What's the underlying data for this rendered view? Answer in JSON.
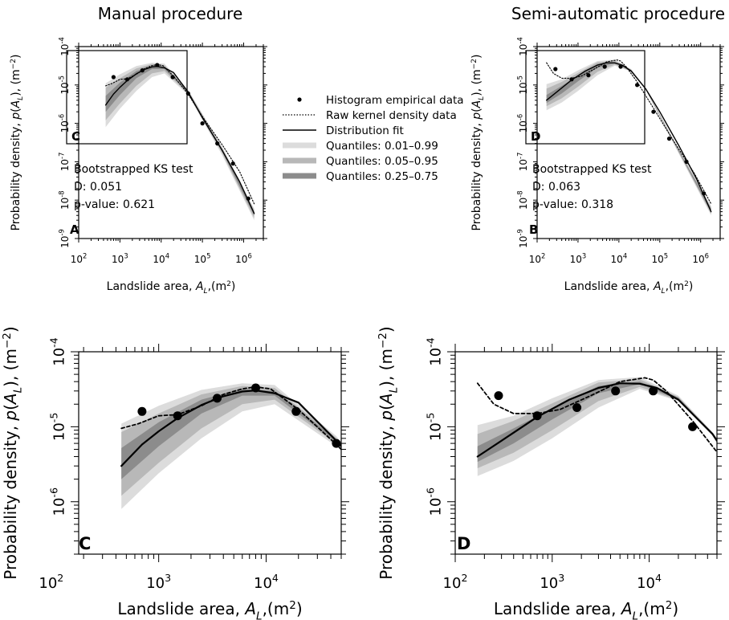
{
  "titles": {
    "left": "Manual procedure",
    "right": "Semi-automatic procedure"
  },
  "axis_text": {
    "ylabel_prefix": "Probability density, ",
    "ylabel_p": "p",
    "ylabel_A": "A",
    "ylabel_L": "L",
    "ylabel_suffix": "), (m",
    "xlabel_prefix": "Landslide area, ",
    "xlabel_A": "A",
    "xlabel_L": "L",
    "xlabel_suffix": ",(m",
    "unit_exp": "2",
    "unit_exp_neg": "−2",
    "close": ")",
    "tick_base": "10"
  },
  "legend": {
    "items": [
      {
        "label": "Histogram empirical data",
        "kind": "point"
      },
      {
        "label": "Raw kernel density data",
        "kind": "dotted"
      },
      {
        "label": "Distribution fit",
        "kind": "line"
      },
      {
        "label": "Quantiles: 0.01–0.99",
        "kind": "band",
        "color": "#dcdcdc"
      },
      {
        "label": "Quantiles: 0.05–0.95",
        "kind": "band",
        "color": "#b8b8b8"
      },
      {
        "label": "Quantiles: 0.25–0.75",
        "kind": "band",
        "color": "#8c8c8c"
      }
    ]
  },
  "ks_tests": {
    "A": {
      "title": "Bootstrapped KS test",
      "D": "D: 0.051",
      "p": "p-value: 0.621"
    },
    "B": {
      "title": "Bootstrapped KS test",
      "D": "D: 0.063",
      "p": "p-value: 0.318"
    }
  },
  "colors": {
    "q01": "#dcdcdc",
    "q05": "#b8b8b8",
    "q25": "#8c8c8c",
    "line": "#000000"
  },
  "chart_data": [
    {
      "id": "A",
      "type": "line",
      "panel_label": "A",
      "zoom_box_label": "C",
      "xscale": "log",
      "yscale": "log",
      "xlim": [
        100,
        3000000
      ],
      "ylim": [
        1e-09,
        0.0001
      ],
      "x_ticks": [
        2,
        3,
        4,
        5,
        6
      ],
      "y_ticks": [
        -9,
        -8,
        -7,
        -6,
        -5,
        -4
      ],
      "series": [
        {
          "kind": "points",
          "x": [
            700,
            1500,
            3500,
            8000,
            19000,
            45000,
            100000,
            230000,
            550000,
            1300000
          ],
          "y": [
            1.6e-05,
            1.4e-05,
            2.4e-05,
            3.3e-05,
            1.6e-05,
            6e-06,
            1e-06,
            3e-07,
            9e-08,
            1.1e-08
          ]
        },
        {
          "kind": "dotted",
          "x": [
            450,
            650,
            1000,
            1500,
            2500,
            4000,
            6000,
            8000,
            11000,
            20000,
            45000,
            100000,
            300000,
            800000,
            1800000
          ],
          "y": [
            9.5e-06,
            1.1e-05,
            1.4e-05,
            1.45e-05,
            1.9e-05,
            2.7e-05,
            3.2e-05,
            3.4e-05,
            3.2e-05,
            1.7e-05,
            5.8e-06,
            1.5e-06,
            2.8e-07,
            5.5e-08,
            8e-09
          ]
        },
        {
          "kind": "fit",
          "x": [
            450,
            700,
            1000,
            1500,
            2500,
            4000,
            6000,
            8000,
            12000,
            20000,
            45000,
            100000,
            300000,
            800000,
            1800000
          ],
          "y": [
            3e-06,
            5.8e-06,
            8.7e-06,
            1.3e-05,
            1.95e-05,
            2.55e-05,
            2.95e-05,
            3.05e-05,
            2.8e-05,
            2.1e-05,
            6.5e-06,
            1.4e-06,
            2e-07,
            3e-08,
            4.5e-09
          ]
        },
        {
          "kind": "band",
          "quantile": "0.01–0.99",
          "x": [
            450,
            1000,
            2500,
            6000,
            12000,
            45000,
            300000,
            1800000
          ],
          "lower": [
            8e-07,
            2.4e-06,
            7e-06,
            1.6e-05,
            2e-05,
            5.5e-06,
            1.5e-07,
            3e-09
          ],
          "upper": [
            1.1e-05,
            1.9e-05,
            3.1e-05,
            3.8e-05,
            3.6e-05,
            7.5e-06,
            2.5e-07,
            6e-09
          ]
        },
        {
          "kind": "band",
          "quantile": "0.05–0.95",
          "x": [
            450,
            1000,
            2500,
            6000,
            12000,
            45000,
            300000,
            1800000
          ],
          "lower": [
            1.2e-06,
            3.3e-06,
            9.5e-06,
            2e-05,
            2.3e-05,
            5.9e-06,
            1.7e-07,
            3.4e-09
          ],
          "upper": [
            8.5e-06,
            1.5e-05,
            2.7e-05,
            3.5e-05,
            3.3e-05,
            7.1e-06,
            2.3e-07,
            5.5e-09
          ]
        },
        {
          "kind": "band",
          "quantile": "0.25–0.75",
          "x": [
            450,
            1000,
            2500,
            6000,
            12000,
            45000,
            300000,
            1800000
          ],
          "lower": [
            2e-06,
            5.5e-06,
            1.5e-05,
            2.6e-05,
            2.6e-05,
            6.2e-06,
            1.85e-07,
            4e-09
          ],
          "upper": [
            5.2e-06,
            1.15e-05,
            2.3e-05,
            3.2e-05,
            3e-05,
            6.8e-06,
            2.15e-07,
            5e-09
          ]
        }
      ]
    },
    {
      "id": "B",
      "type": "line",
      "panel_label": "B",
      "zoom_box_label": "D",
      "xscale": "log",
      "yscale": "log",
      "xlim": [
        100,
        3000000
      ],
      "ylim": [
        1e-09,
        0.0001
      ],
      "x_ticks": [
        2,
        3,
        4,
        5,
        6
      ],
      "y_ticks": [
        -9,
        -8,
        -7,
        -6,
        -5,
        -4
      ],
      "series": [
        {
          "kind": "points",
          "x": [
            280,
            700,
            1800,
            4500,
            11000,
            28000,
            70000,
            170000,
            450000,
            1200000
          ],
          "y": [
            2.6e-05,
            1.4e-05,
            1.8e-05,
            3e-05,
            3e-05,
            1e-05,
            2e-06,
            4e-07,
            1e-07,
            1.5e-08
          ]
        },
        {
          "kind": "dotted",
          "x": [
            170,
            250,
            400,
            700,
            1200,
            2500,
            5000,
            9000,
            11000,
            15000,
            28000,
            70000,
            200000,
            700000,
            1800000
          ],
          "y": [
            3.8e-05,
            2e-05,
            1.5e-05,
            1.5e-05,
            1.7e-05,
            2.6e-05,
            4e-05,
            4.5e-05,
            4.2e-05,
            3e-05,
            1.2e-05,
            2.5e-06,
            4e-07,
            5e-08,
            8e-09
          ]
        },
        {
          "kind": "fit",
          "x": [
            170,
            300,
            700,
            1500,
            3000,
            5000,
            8000,
            12000,
            20000,
            45000,
            100000,
            300000,
            800000,
            1800000
          ],
          "y": [
            4e-06,
            6.5e-06,
            1.35e-05,
            2.3e-05,
            3.3e-05,
            3.8e-05,
            3.75e-05,
            3.3e-05,
            2.3e-05,
            8e-06,
            2e-06,
            2.5e-07,
            3.5e-08,
            5e-09
          ]
        },
        {
          "kind": "band",
          "quantile": "0.01–0.99",
          "x": [
            170,
            400,
            1000,
            3000,
            8000,
            20000,
            45000,
            200000,
            1800000
          ],
          "lower": [
            2.2e-06,
            3.5e-06,
            7e-06,
            1.8e-05,
            3.2e-05,
            2.2e-05,
            7.5e-06,
            3.5e-07,
            4e-09
          ],
          "upper": [
            1.05e-05,
            1.4e-05,
            2.4e-05,
            4.2e-05,
            4.6e-05,
            2.6e-05,
            8.5e-06,
            4.5e-07,
            7e-09
          ]
        },
        {
          "kind": "band",
          "quantile": "0.05–0.95",
          "x": [
            170,
            400,
            1000,
            3000,
            8000,
            20000,
            45000,
            200000,
            1800000
          ],
          "lower": [
            2.8e-06,
            4.5e-06,
            9e-06,
            2.2e-05,
            3.4e-05,
            2.25e-05,
            7.7e-06,
            3.7e-07,
            4.4e-09
          ],
          "upper": [
            8e-06,
            1.2e-05,
            2.05e-05,
            3.9e-05,
            4.3e-05,
            2.5e-05,
            8.3e-06,
            4.3e-07,
            6.5e-09
          ]
        },
        {
          "kind": "band",
          "quantile": "0.25–0.75",
          "x": [
            170,
            400,
            1000,
            3000,
            8000,
            20000,
            45000,
            200000,
            1800000
          ],
          "lower": [
            3.4e-06,
            6e-06,
            1.25e-05,
            2.8e-05,
            3.7e-05,
            2.3e-05,
            7.9e-06,
            3.9e-07,
            4.8e-09
          ],
          "upper": [
            5.5e-06,
            9.5e-06,
            1.75e-05,
            3.5e-05,
            4e-05,
            2.45e-05,
            8.1e-06,
            4.1e-07,
            6e-09
          ]
        }
      ]
    },
    {
      "id": "C",
      "type": "line",
      "panel_label": "C",
      "xscale": "log",
      "yscale": "log",
      "xlim": [
        180,
        50000
      ],
      "ylim": [
        2e-07,
        0.0001
      ],
      "x_ticks": [
        2,
        3,
        4
      ],
      "y_ticks": [
        -6,
        -5,
        -4
      ],
      "series": [
        {
          "kind": "points",
          "x": [
            700,
            1500,
            3500,
            8000,
            19000,
            45000
          ],
          "y": [
            1.6e-05,
            1.4e-05,
            2.4e-05,
            3.3e-05,
            1.6e-05,
            6e-06
          ]
        },
        {
          "kind": "dotted",
          "x": [
            450,
            650,
            1000,
            1500,
            2500,
            4000,
            6000,
            8000,
            11000,
            20000,
            45000,
            50000
          ],
          "y": [
            9.5e-06,
            1.1e-05,
            1.4e-05,
            1.45e-05,
            1.9e-05,
            2.7e-05,
            3.2e-05,
            3.4e-05,
            3.2e-05,
            1.7e-05,
            5.8e-06,
            5e-06
          ]
        },
        {
          "kind": "fit",
          "x": [
            450,
            700,
            1000,
            1500,
            2500,
            4000,
            6000,
            8000,
            12000,
            20000,
            45000,
            50000
          ],
          "y": [
            3e-06,
            5.8e-06,
            8.7e-06,
            1.3e-05,
            1.95e-05,
            2.55e-05,
            2.95e-05,
            3.05e-05,
            2.8e-05,
            2.1e-05,
            6.5e-06,
            5.5e-06
          ]
        },
        {
          "kind": "band",
          "quantile": "0.01–0.99",
          "x": [
            450,
            1000,
            2500,
            6000,
            12000,
            45000,
            50000
          ],
          "lower": [
            8e-07,
            2.4e-06,
            7e-06,
            1.6e-05,
            2e-05,
            5.5e-06,
            4.8e-06
          ],
          "upper": [
            1.1e-05,
            1.9e-05,
            3.1e-05,
            3.8e-05,
            3.6e-05,
            7.5e-06,
            6.2e-06
          ]
        },
        {
          "kind": "band",
          "quantile": "0.05–0.95",
          "x": [
            450,
            1000,
            2500,
            6000,
            12000,
            45000,
            50000
          ],
          "lower": [
            1.2e-06,
            3.3e-06,
            9.5e-06,
            2e-05,
            2.3e-05,
            5.9e-06,
            5.1e-06
          ],
          "upper": [
            8.5e-06,
            1.5e-05,
            2.7e-05,
            3.5e-05,
            3.3e-05,
            7.1e-06,
            5.9e-06
          ]
        },
        {
          "kind": "band",
          "quantile": "0.25–0.75",
          "x": [
            450,
            1000,
            2500,
            6000,
            12000,
            45000,
            50000
          ],
          "lower": [
            2e-06,
            5.5e-06,
            1.5e-05,
            2.6e-05,
            2.6e-05,
            6.2e-06,
            5.3e-06
          ],
          "upper": [
            5.2e-06,
            1.15e-05,
            2.3e-05,
            3.2e-05,
            3e-05,
            6.8e-06,
            5.7e-06
          ]
        }
      ]
    },
    {
      "id": "D",
      "type": "line",
      "panel_label": "D",
      "xscale": "log",
      "yscale": "log",
      "xlim": [
        100,
        50000
      ],
      "ylim": [
        2e-07,
        0.0001
      ],
      "x_ticks": [
        2,
        3,
        4
      ],
      "y_ticks": [
        -6,
        -5,
        -4
      ],
      "series": [
        {
          "kind": "points",
          "x": [
            280,
            700,
            1800,
            4500,
            11000,
            28000
          ],
          "y": [
            2.6e-05,
            1.4e-05,
            1.8e-05,
            3e-05,
            3e-05,
            1e-05
          ]
        },
        {
          "kind": "dotted",
          "x": [
            170,
            250,
            400,
            700,
            1200,
            2500,
            5000,
            9000,
            11000,
            15000,
            28000,
            50000
          ],
          "y": [
            3.8e-05,
            2e-05,
            1.5e-05,
            1.5e-05,
            1.7e-05,
            2.6e-05,
            4e-05,
            4.5e-05,
            4.2e-05,
            3e-05,
            1.2e-05,
            4.6e-06
          ]
        },
        {
          "kind": "fit",
          "x": [
            170,
            300,
            700,
            1500,
            3000,
            5000,
            8000,
            12000,
            20000,
            45000,
            50000
          ],
          "y": [
            4e-06,
            6.5e-06,
            1.35e-05,
            2.3e-05,
            3.3e-05,
            3.8e-05,
            3.75e-05,
            3.3e-05,
            2.3e-05,
            8e-06,
            6.5e-06
          ]
        },
        {
          "kind": "band",
          "quantile": "0.01–0.99",
          "x": [
            170,
            400,
            1000,
            3000,
            8000,
            20000,
            45000,
            50000
          ],
          "lower": [
            2.2e-06,
            3.5e-06,
            7e-06,
            1.8e-05,
            3.2e-05,
            2.2e-05,
            7.5e-06,
            6e-06
          ],
          "upper": [
            1.05e-05,
            1.4e-05,
            2.4e-05,
            4.2e-05,
            4.6e-05,
            2.6e-05,
            8.5e-06,
            7e-06
          ]
        },
        {
          "kind": "band",
          "quantile": "0.05–0.95",
          "x": [
            170,
            400,
            1000,
            3000,
            8000,
            20000,
            45000,
            50000
          ],
          "lower": [
            2.8e-06,
            4.5e-06,
            9e-06,
            2.2e-05,
            3.4e-05,
            2.25e-05,
            7.7e-06,
            6.2e-06
          ],
          "upper": [
            8e-06,
            1.2e-05,
            2.05e-05,
            3.9e-05,
            4.3e-05,
            2.5e-05,
            8.3e-06,
            6.8e-06
          ]
        },
        {
          "kind": "band",
          "quantile": "0.25–0.75",
          "x": [
            170,
            400,
            1000,
            3000,
            8000,
            20000,
            45000,
            50000
          ],
          "lower": [
            3.4e-06,
            6e-06,
            1.25e-05,
            2.8e-05,
            3.7e-05,
            2.3e-05,
            7.9e-06,
            6.4e-06
          ],
          "upper": [
            5.5e-06,
            9.5e-06,
            1.75e-05,
            3.5e-05,
            4e-05,
            2.45e-05,
            8.1e-06,
            6.6e-06
          ]
        }
      ]
    }
  ]
}
